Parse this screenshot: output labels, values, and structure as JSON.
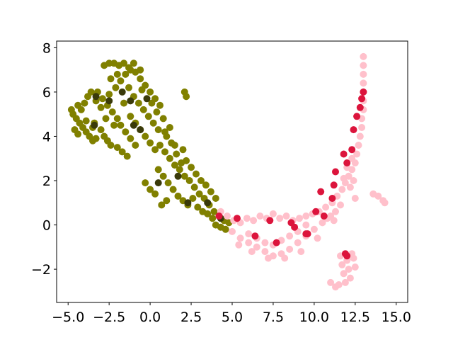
{
  "chart_data": {
    "type": "scatter",
    "title": "",
    "xlabel": "",
    "ylabel": "",
    "xlim": [
      -5.7,
      15.7
    ],
    "ylim": [
      -3.5,
      8.3
    ],
    "grid": false,
    "legend": "none",
    "x_ticks": [
      {
        "value": -5.0,
        "label": "−5.0"
      },
      {
        "value": -2.5,
        "label": "−2.5"
      },
      {
        "value": 0.0,
        "label": "0.0"
      },
      {
        "value": 2.5,
        "label": "2.5"
      },
      {
        "value": 5.0,
        "label": "5.0"
      },
      {
        "value": 7.5,
        "label": "7.5"
      },
      {
        "value": 10.0,
        "label": "10.0"
      },
      {
        "value": 12.5,
        "label": "12.5"
      },
      {
        "value": 15.0,
        "label": "15.0"
      }
    ],
    "y_ticks": [
      {
        "value": -2,
        "label": "−2"
      },
      {
        "value": 0,
        "label": "0"
      },
      {
        "value": 2,
        "label": "2"
      },
      {
        "value": 4,
        "label": "4"
      },
      {
        "value": 6,
        "label": "6"
      },
      {
        "value": 8,
        "label": "8"
      }
    ],
    "series": [
      {
        "color": "#808000",
        "points": [
          [
            -4.7,
            5.0
          ],
          [
            -4.5,
            4.8
          ],
          [
            -4.3,
            4.6
          ],
          [
            -4.1,
            4.4
          ],
          [
            -3.9,
            4.2
          ],
          [
            -3.7,
            4.0
          ],
          [
            -3.5,
            3.8
          ],
          [
            -3.3,
            3.9
          ],
          [
            -4.6,
            4.3
          ],
          [
            -4.4,
            4.1
          ],
          [
            -4.2,
            5.2
          ],
          [
            -4.0,
            5.5
          ],
          [
            -3.8,
            5.8
          ],
          [
            -3.6,
            6.0
          ],
          [
            -3.3,
            5.6
          ],
          [
            -3.0,
            5.3
          ],
          [
            -3.4,
            4.6
          ],
          [
            -3.0,
            4.3
          ],
          [
            -2.8,
            4.0
          ],
          [
            -2.6,
            3.8
          ],
          [
            -2.4,
            3.6
          ],
          [
            -2.0,
            3.5
          ],
          [
            -1.7,
            3.3
          ],
          [
            -1.4,
            3.1
          ],
          [
            -3.2,
            6.0
          ],
          [
            -2.9,
            5.7
          ],
          [
            -2.6,
            5.4
          ],
          [
            -2.3,
            5.1
          ],
          [
            -2.0,
            4.8
          ],
          [
            -1.8,
            4.5
          ],
          [
            -1.5,
            4.2
          ],
          [
            -1.2,
            3.9
          ],
          [
            -0.9,
            3.6
          ],
          [
            -2.5,
            5.9
          ],
          [
            -2.1,
            6.2
          ],
          [
            -1.8,
            6.5
          ],
          [
            -1.5,
            6.8
          ],
          [
            -1.2,
            7.0
          ],
          [
            -2.8,
            7.2
          ],
          [
            -2.5,
            7.3
          ],
          [
            -2.2,
            7.3
          ],
          [
            -1.9,
            7.2
          ],
          [
            -1.6,
            7.3
          ],
          [
            -1.3,
            7.1
          ],
          [
            -0.9,
            6.9
          ],
          [
            -0.6,
            6.6
          ],
          [
            -0.3,
            6.3
          ],
          [
            0.0,
            6.0
          ],
          [
            0.3,
            5.7
          ],
          [
            0.6,
            5.4
          ],
          [
            -1.0,
            5.8
          ],
          [
            -0.7,
            5.5
          ],
          [
            -0.4,
            5.2
          ],
          [
            -0.1,
            4.9
          ],
          [
            0.2,
            4.6
          ],
          [
            0.5,
            4.3
          ],
          [
            -1.2,
            4.9
          ],
          [
            -0.9,
            4.6
          ],
          [
            -0.6,
            4.3
          ],
          [
            -0.3,
            4.0
          ],
          [
            0.0,
            3.7
          ],
          [
            0.3,
            3.4
          ],
          [
            0.6,
            3.6
          ],
          [
            0.9,
            3.3
          ],
          [
            1.2,
            3.0
          ],
          [
            1.5,
            2.7
          ],
          [
            1.8,
            2.5
          ],
          [
            2.1,
            2.2
          ],
          [
            2.4,
            2.0
          ],
          [
            2.7,
            1.7
          ],
          [
            3.0,
            1.4
          ],
          [
            3.3,
            1.2
          ],
          [
            3.6,
            0.9
          ],
          [
            3.9,
            0.6
          ],
          [
            4.2,
            0.4
          ],
          [
            4.5,
            0.2
          ],
          [
            1.0,
            4.0
          ],
          [
            1.3,
            3.7
          ],
          [
            1.6,
            3.2
          ],
          [
            1.9,
            2.8
          ],
          [
            2.2,
            2.9
          ],
          [
            2.5,
            2.6
          ],
          [
            2.8,
            2.3
          ],
          [
            3.1,
            2.0
          ],
          [
            3.4,
            1.8
          ],
          [
            3.7,
            1.5
          ],
          [
            4.0,
            1.2
          ],
          [
            0.5,
            2.5
          ],
          [
            0.8,
            2.2
          ],
          [
            1.1,
            1.9
          ],
          [
            1.4,
            1.6
          ],
          [
            1.7,
            1.3
          ],
          [
            2.0,
            1.1
          ],
          [
            2.3,
            0.9
          ],
          [
            0.0,
            1.6
          ],
          [
            0.3,
            1.4
          ],
          [
            -0.3,
            1.9
          ],
          [
            0.7,
            0.9
          ],
          [
            1.0,
            1.1
          ],
          [
            2.1,
            6.0
          ],
          [
            2.2,
            5.8
          ],
          [
            4.0,
            0.0
          ],
          [
            4.3,
            -0.1
          ],
          [
            4.6,
            -0.2
          ],
          [
            4.8,
            0.1
          ],
          [
            3.5,
            0.5
          ],
          [
            3.8,
            0.3
          ],
          [
            2.6,
            1.2
          ],
          [
            2.9,
            0.8
          ],
          [
            3.2,
            0.6
          ],
          [
            -4.8,
            5.2
          ],
          [
            -4.4,
            5.4
          ],
          [
            -3.9,
            4.7
          ],
          [
            -3.5,
            4.4
          ],
          [
            -2.7,
            4.8
          ],
          [
            -2.2,
            4.5
          ],
          [
            -1.6,
            5.5
          ],
          [
            -1.3,
            6.2
          ],
          [
            -0.5,
            6.1
          ],
          [
            0.1,
            5.5
          ],
          [
            -2.0,
            6.8
          ],
          [
            -2.4,
            6.6
          ],
          [
            -1.0,
            7.3
          ],
          [
            -0.6,
            7.0
          ],
          [
            0.4,
            5.1
          ],
          [
            0.8,
            4.8
          ],
          [
            1.2,
            4.4
          ],
          [
            0.9,
            4.2
          ],
          [
            1.5,
            3.6
          ],
          [
            2.0,
            3.4
          ]
        ]
      },
      {
        "color": "#3a3a0a",
        "points": [
          [
            -3.4,
            4.5
          ],
          [
            -3.3,
            5.8
          ],
          [
            -2.5,
            5.6
          ],
          [
            -1.7,
            6.0
          ],
          [
            -1.2,
            5.6
          ],
          [
            -1.0,
            4.5
          ],
          [
            -0.6,
            4.3
          ],
          [
            -0.2,
            5.7
          ],
          [
            0.5,
            1.9
          ],
          [
            1.7,
            2.2
          ],
          [
            2.3,
            1.0
          ],
          [
            3.5,
            1.0
          ],
          [
            4.3,
            0.3
          ]
        ]
      },
      {
        "color": "#ffc0cb",
        "points": [
          [
            4.3,
            0.6
          ],
          [
            4.7,
            0.4
          ],
          [
            5.1,
            0.2
          ],
          [
            5.5,
            0.1
          ],
          [
            5.9,
            0.3
          ],
          [
            6.3,
            0.2
          ],
          [
            6.7,
            0.4
          ],
          [
            7.1,
            0.3
          ],
          [
            7.5,
            0.5
          ],
          [
            7.9,
            0.3
          ],
          [
            8.3,
            0.4
          ],
          [
            8.7,
            0.2
          ],
          [
            9.1,
            0.3
          ],
          [
            9.5,
            0.4
          ],
          [
            9.9,
            0.5
          ],
          [
            10.3,
            0.6
          ],
          [
            10.7,
            0.8
          ],
          [
            11.1,
            1.0
          ],
          [
            11.4,
            1.3
          ],
          [
            11.7,
            1.6
          ],
          [
            11.9,
            1.9
          ],
          [
            12.1,
            2.2
          ],
          [
            12.3,
            2.5
          ],
          [
            12.5,
            2.8
          ],
          [
            12.6,
            3.2
          ],
          [
            12.7,
            3.6
          ],
          [
            12.8,
            4.0
          ],
          [
            12.9,
            4.4
          ],
          [
            12.9,
            4.8
          ],
          [
            13.0,
            5.2
          ],
          [
            13.0,
            5.6
          ],
          [
            13.0,
            6.0
          ],
          [
            13.0,
            6.4
          ],
          [
            13.0,
            6.8
          ],
          [
            13.0,
            7.2
          ],
          [
            13.0,
            7.6
          ],
          [
            12.4,
            2.0
          ],
          [
            12.0,
            2.6
          ],
          [
            11.8,
            2.1
          ],
          [
            12.2,
            1.7
          ],
          [
            5.0,
            -0.3
          ],
          [
            5.5,
            -0.6
          ],
          [
            6.0,
            -0.8
          ],
          [
            6.5,
            -1.0
          ],
          [
            7.0,
            -1.2
          ],
          [
            7.5,
            -1.4
          ],
          [
            8.0,
            -1.3
          ],
          [
            8.5,
            -1.1
          ],
          [
            9.0,
            -0.8
          ],
          [
            9.5,
            -0.5
          ],
          [
            10.0,
            -0.2
          ],
          [
            10.5,
            0.1
          ],
          [
            11.0,
            0.4
          ],
          [
            6.0,
            -0.4
          ],
          [
            6.5,
            -0.6
          ],
          [
            7.0,
            -0.8
          ],
          [
            7.5,
            -0.9
          ],
          [
            8.0,
            -0.7
          ],
          [
            8.5,
            -0.5
          ],
          [
            9.0,
            -0.3
          ],
          [
            9.5,
            0.0
          ],
          [
            5.4,
            -0.9
          ],
          [
            6.2,
            -1.2
          ],
          [
            7.2,
            -1.5
          ],
          [
            8.2,
            -1.5
          ],
          [
            9.2,
            -1.2
          ],
          [
            10.2,
            -0.6
          ],
          [
            11.2,
            0.2
          ],
          [
            11.6,
            0.9
          ],
          [
            12.5,
            1.2
          ],
          [
            13.6,
            1.4
          ],
          [
            13.9,
            1.3
          ],
          [
            14.2,
            1.1
          ],
          [
            14.3,
            1.0
          ],
          [
            11.6,
            -1.4
          ],
          [
            11.7,
            -1.8
          ],
          [
            11.8,
            -2.2
          ],
          [
            11.9,
            -2.6
          ],
          [
            12.0,
            -1.6
          ],
          [
            12.1,
            -2.0
          ],
          [
            12.2,
            -2.4
          ],
          [
            11.5,
            -2.7
          ],
          [
            11.3,
            -2.8
          ],
          [
            11.0,
            -2.6
          ],
          [
            12.3,
            -1.3
          ],
          [
            12.4,
            -1.5
          ],
          [
            12.5,
            -1.9
          ],
          [
            10.8,
            0.3
          ],
          [
            11.3,
            0.6
          ],
          [
            12.3,
            3.0
          ]
        ]
      },
      {
        "color": "#dc143c",
        "points": [
          [
            4.2,
            0.4
          ],
          [
            5.3,
            0.3
          ],
          [
            6.4,
            -0.5
          ],
          [
            7.7,
            -0.8
          ],
          [
            8.8,
            -0.1
          ],
          [
            9.6,
            -0.4
          ],
          [
            10.1,
            0.6
          ],
          [
            10.6,
            0.4
          ],
          [
            11.2,
            1.8
          ],
          [
            11.3,
            2.4
          ],
          [
            11.8,
            3.2
          ],
          [
            12.0,
            2.8
          ],
          [
            12.3,
            3.4
          ],
          [
            12.4,
            4.3
          ],
          [
            12.6,
            4.9
          ],
          [
            12.8,
            5.3
          ],
          [
            12.9,
            5.7
          ],
          [
            13.0,
            6.0
          ],
          [
            9.5,
            -0.4
          ],
          [
            8.6,
            0.1
          ],
          [
            10.4,
            1.5
          ],
          [
            11.1,
            1.2
          ],
          [
            11.9,
            -1.3
          ],
          [
            12.0,
            -1.4
          ],
          [
            7.3,
            0.2
          ]
        ]
      }
    ]
  }
}
